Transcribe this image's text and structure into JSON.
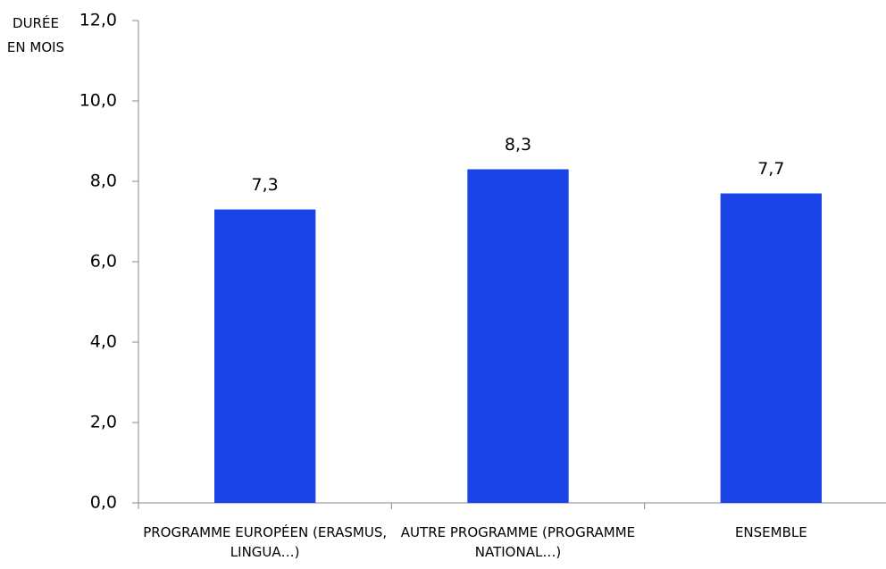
{
  "chart_data": {
    "type": "bar",
    "y_axis_label": "DURÉE EN MOIS",
    "categories": [
      "PROGRAMME EUROPÉEN (ERASMUS, LINGUA…)",
      "AUTRE PROGRAMME (PROGRAMME NATIONAL…)",
      "ENSEMBLE"
    ],
    "values": [
      7.3,
      8.3,
      7.7
    ],
    "value_labels": [
      "7,3",
      "8,3",
      "7,7"
    ],
    "color": "#1a44e8",
    "ylim": [
      0,
      12
    ],
    "yticks": [
      {
        "value": 0,
        "label": "0,0"
      },
      {
        "value": 2,
        "label": "2,0"
      },
      {
        "value": 4,
        "label": "4,0"
      },
      {
        "value": 6,
        "label": "6,0"
      },
      {
        "value": 8,
        "label": "8,0"
      },
      {
        "value": 10,
        "label": "10,0"
      },
      {
        "value": 12,
        "label": "12,0"
      }
    ],
    "grid": false
  }
}
